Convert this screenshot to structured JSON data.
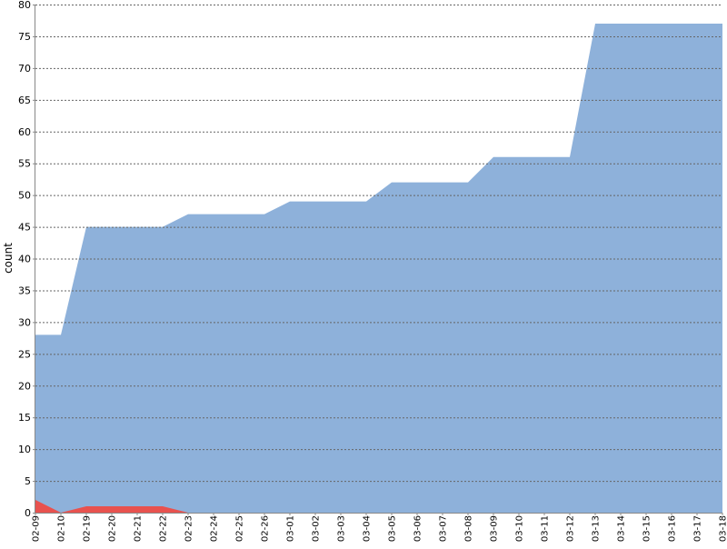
{
  "chart_data": {
    "type": "area",
    "title": "",
    "xlabel": "",
    "ylabel": "count",
    "ylim": [
      0,
      80
    ],
    "yticks": [
      0,
      5,
      10,
      15,
      20,
      25,
      30,
      35,
      40,
      45,
      50,
      55,
      60,
      65,
      70,
      75,
      80
    ],
    "grid": true,
    "categories": [
      "02-09",
      "02-10",
      "02-19",
      "02-20",
      "02-21",
      "02-22",
      "02-23",
      "02-24",
      "02-25",
      "02-26",
      "03-01",
      "03-02",
      "03-03",
      "03-04",
      "03-05",
      "03-06",
      "03-07",
      "03-08",
      "03-09",
      "03-10",
      "03-11",
      "03-12",
      "03-13",
      "03-14",
      "03-15",
      "03-16",
      "03-17",
      "03-18"
    ],
    "series": [
      {
        "color": "#8eb1da",
        "values": [
          28,
          28,
          45,
          45,
          45,
          45,
          47,
          47,
          47,
          47,
          49,
          49,
          49,
          49,
          52,
          52,
          52,
          52,
          56,
          56,
          56,
          56,
          77,
          77,
          77,
          77,
          77,
          77
        ]
      },
      {
        "color": "#e8524f",
        "values": [
          2,
          0,
          1,
          1,
          1,
          1,
          0,
          0,
          0,
          0,
          0,
          0,
          0,
          0,
          0,
          0,
          0,
          0,
          0,
          0,
          0,
          0,
          0,
          0,
          0,
          0,
          0,
          0
        ]
      }
    ]
  }
}
